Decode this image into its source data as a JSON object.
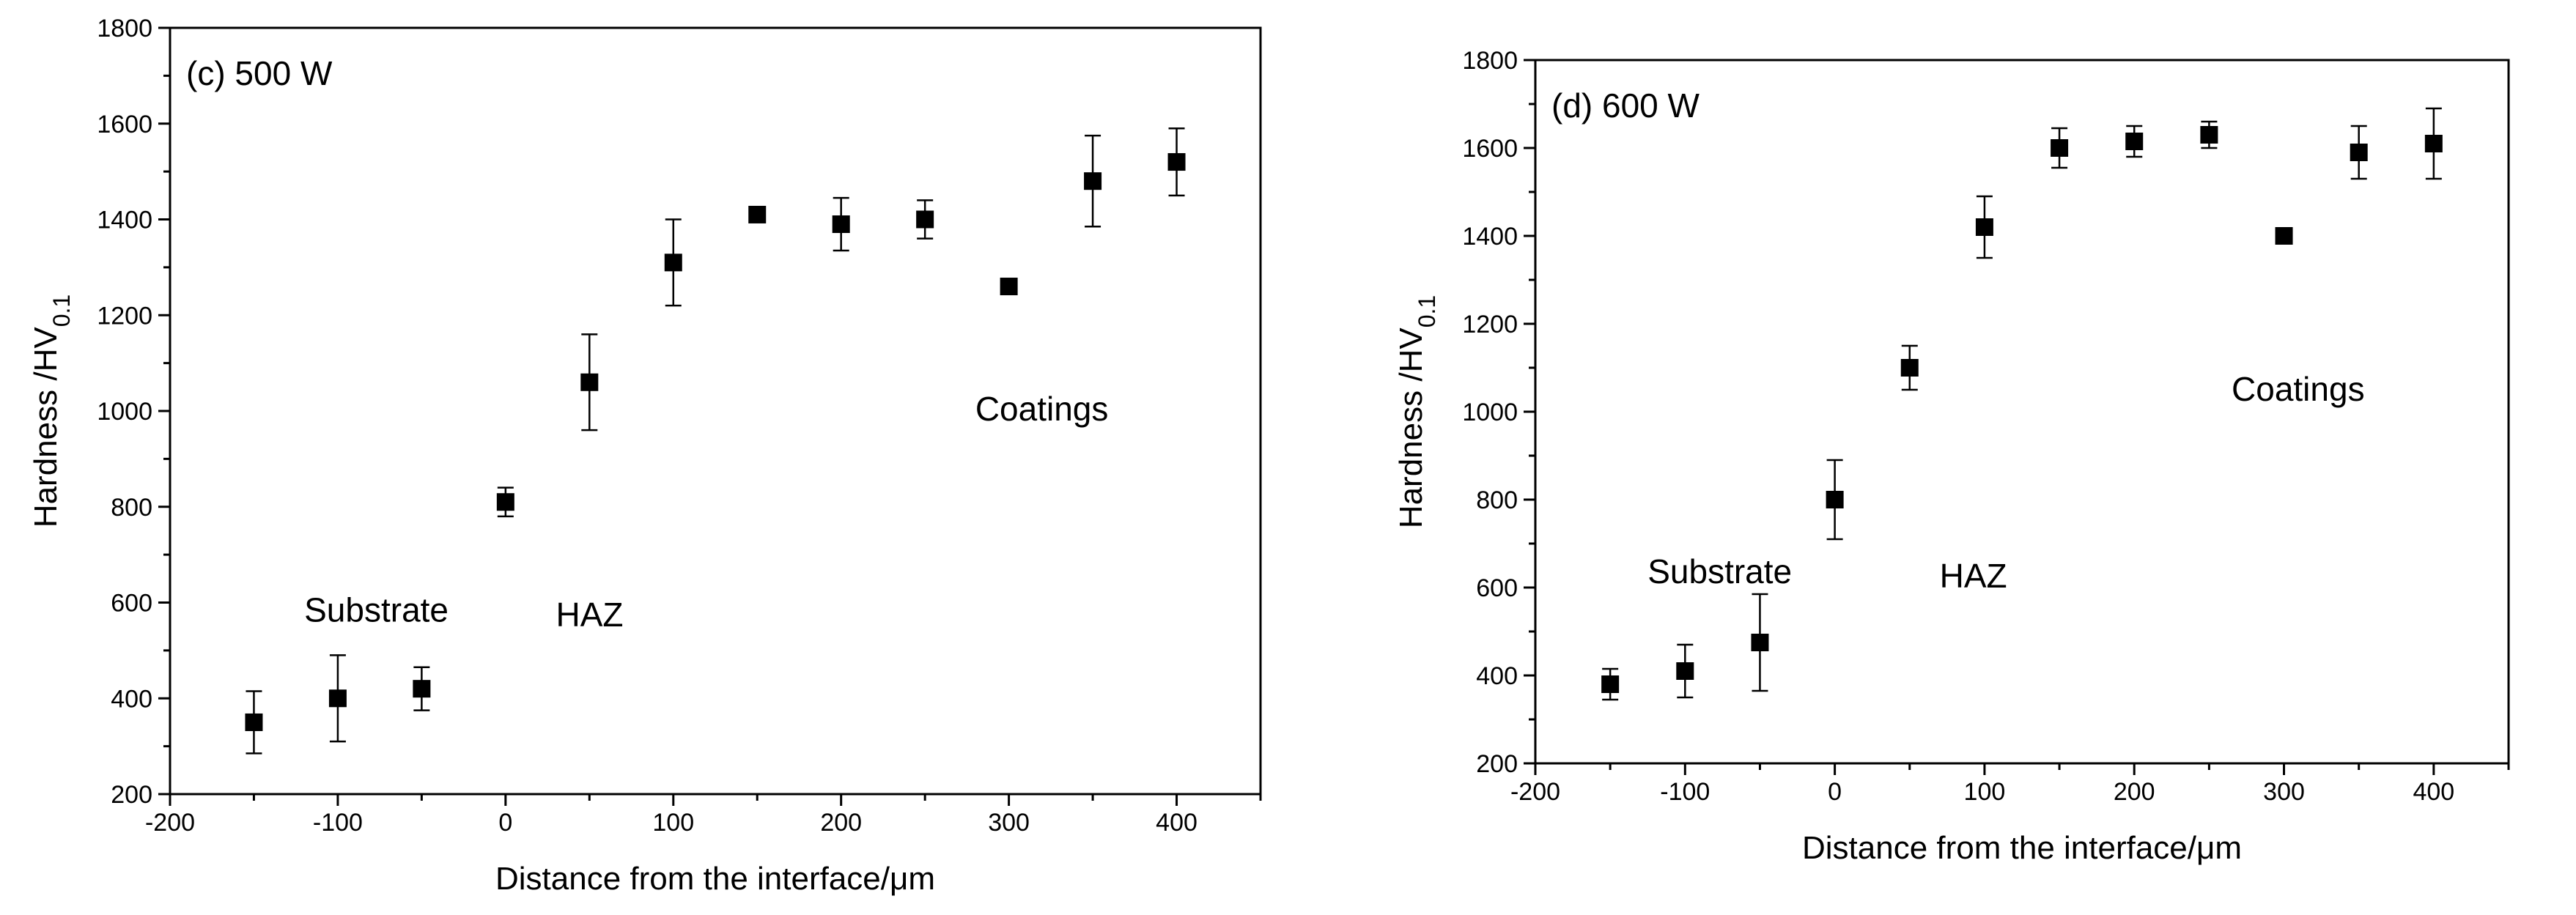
{
  "chart_data": [
    {
      "type": "scatter",
      "panel_label": "(c) 500 W",
      "xlabel": "Distance from the interface/μm",
      "ylabel_main": "Hardness /HV",
      "ylabel_sub": "0.1",
      "xlim": [
        -200,
        450
      ],
      "ylim": [
        200,
        1800
      ],
      "xticks": [
        -200,
        -100,
        0,
        100,
        200,
        300,
        400
      ],
      "yticks": [
        200,
        400,
        600,
        800,
        1000,
        1200,
        1400,
        1600,
        1800
      ],
      "series": [
        {
          "name": "Hardness",
          "x": [
            -150,
            -100,
            -50,
            0,
            50,
            100,
            150,
            200,
            250,
            300,
            350,
            400
          ],
          "y": [
            350,
            400,
            420,
            810,
            1060,
            1310,
            1410,
            1390,
            1400,
            1260,
            1480,
            1520
          ],
          "err_up": [
            65,
            90,
            45,
            30,
            100,
            90,
            15,
            55,
            40,
            0,
            95,
            70
          ],
          "err_down": [
            65,
            90,
            45,
            30,
            100,
            90,
            15,
            55,
            40,
            0,
            95,
            70
          ]
        }
      ],
      "annotations": [
        {
          "text": "Substrate",
          "x": -120,
          "y": 560
        },
        {
          "text": "HAZ",
          "x": 30,
          "y": 550
        },
        {
          "text": "Coatings",
          "x": 280,
          "y": 980
        }
      ]
    },
    {
      "type": "scatter",
      "panel_label": "(d) 600 W",
      "xlabel": "Distance from the interface/μm",
      "ylabel_main": "Hardness /HV",
      "ylabel_sub": "0.1",
      "xlim": [
        -200,
        450
      ],
      "ylim": [
        200,
        1800
      ],
      "xticks": [
        -200,
        -100,
        0,
        100,
        200,
        300,
        400
      ],
      "yticks": [
        200,
        400,
        600,
        800,
        1000,
        1200,
        1400,
        1600,
        1800
      ],
      "series": [
        {
          "name": "Hardness",
          "x": [
            -150,
            -100,
            -50,
            0,
            50,
            100,
            150,
            200,
            250,
            300,
            350,
            400
          ],
          "y": [
            380,
            410,
            475,
            800,
            1100,
            1420,
            1600,
            1615,
            1630,
            1400,
            1590,
            1610
          ],
          "err_up": [
            35,
            60,
            110,
            90,
            50,
            70,
            45,
            35,
            30,
            0,
            60,
            80
          ],
          "err_down": [
            35,
            60,
            110,
            90,
            50,
            70,
            45,
            35,
            30,
            0,
            60,
            80
          ]
        }
      ],
      "annotations": [
        {
          "text": "Substrate",
          "x": -125,
          "y": 610
        },
        {
          "text": "HAZ",
          "x": 70,
          "y": 600
        },
        {
          "text": "Coatings",
          "x": 265,
          "y": 1025
        }
      ]
    }
  ]
}
